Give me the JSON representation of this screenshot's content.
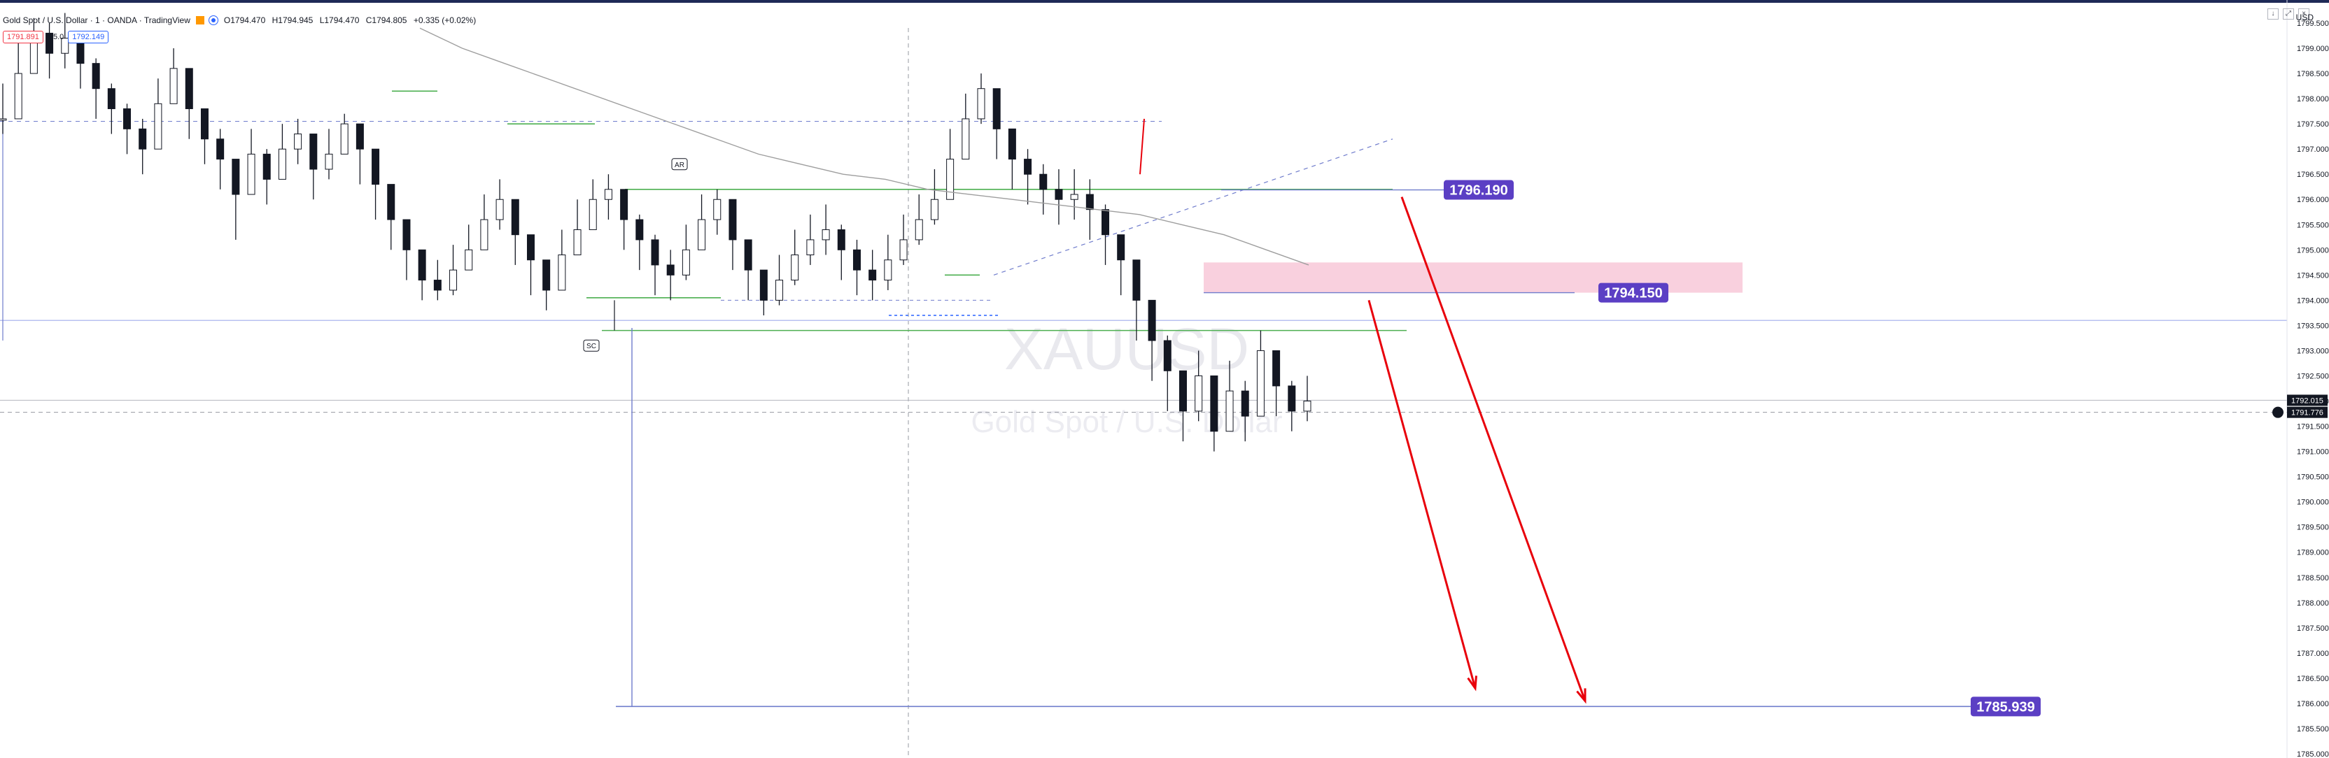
{
  "header": {
    "symbol_title": "Gold Spot / U.S. Dollar · 1 · OANDA · TradingView",
    "ohlc": {
      "open": "O1794.470",
      "high": "H1794.945",
      "low": "L1794.470",
      "close": "C1794.805",
      "change": "+0.335 (+0.02%)"
    },
    "sell_price": "1791.891",
    "spread": "25.0",
    "buy_price": "1792.149",
    "currency": "USD"
  },
  "watermark": {
    "ticker": "XAUUSD",
    "description": "Gold Spot / U.S. Dollar"
  },
  "labels": {
    "ar": "AR",
    "sc": "SC"
  },
  "colors": {
    "up": "#131722",
    "down": "#131722",
    "accent": "#5b3fc4",
    "arrow": "#e8000b",
    "zone": "#f8c8d8",
    "support": "#4caf50",
    "line": "#6f7ccc"
  },
  "chart_data": {
    "type": "line",
    "title": "Gold Spot / U.S. Dollar · 1 · OANDA",
    "xlabel": "",
    "ylabel": "",
    "ylim": [
      1785.0,
      1799.5
    ],
    "y_ticks": [
      "1799.500",
      "1799.000",
      "1798.500",
      "1798.000",
      "1797.500",
      "1797.000",
      "1796.500",
      "1796.000",
      "1795.500",
      "1795.000",
      "1794.500",
      "1794.000",
      "1793.500",
      "1793.000",
      "1792.500",
      "1792.000",
      "1791.500",
      "1791.000",
      "1790.500",
      "1790.000",
      "1789.500",
      "1789.000",
      "1788.500",
      "1788.000",
      "1787.500",
      "1787.000",
      "1786.500",
      "1786.000",
      "1785.500",
      "1785.000"
    ],
    "last_price": "1792.015",
    "cursor_price": "1791.776",
    "price_line_value": 1792.015,
    "cursor_line_value": 1791.776,
    "series": [
      {
        "values": [
          1797.6,
          1798.5,
          1799.3,
          1798.9,
          1799.2,
          1798.7,
          1798.2,
          1797.8,
          1797.4,
          1797.0,
          1797.9,
          1798.6,
          1797.8,
          1797.2,
          1796.8,
          1796.1,
          1796.9,
          1796.4,
          1797.0,
          1797.3,
          1796.6,
          1796.9,
          1797.5,
          1797.0,
          1796.3,
          1795.6,
          1795.0,
          1794.4,
          1794.2,
          1794.6,
          1795.0,
          1795.6,
          1796.0,
          1795.3,
          1794.8,
          1794.2,
          1794.9,
          1795.4,
          1796.0,
          1796.2,
          1795.6,
          1795.2,
          1794.7,
          1794.5,
          1795.0,
          1795.6,
          1796.0,
          1795.2,
          1794.6,
          1794.0,
          1794.4,
          1794.9,
          1795.2,
          1795.4,
          1795.0,
          1794.6,
          1794.4,
          1794.8,
          1795.2,
          1795.6,
          1796.0,
          1796.8,
          1797.6,
          1798.2,
          1797.4,
          1796.8,
          1796.5,
          1796.2,
          1796.0,
          1796.1,
          1795.8,
          1795.3,
          1794.8,
          1794.0,
          1793.2,
          1792.6,
          1791.8,
          1792.5,
          1791.4,
          1792.2,
          1791.7,
          1793.0,
          1792.3,
          1791.8,
          1792.0
        ],
        "low_values": [
          1797.3,
          1798.1,
          1798.8,
          1798.4,
          1798.6,
          1798.2,
          1797.6,
          1797.3,
          1796.9,
          1796.5,
          1797.3,
          1797.9,
          1797.2,
          1796.7,
          1796.2,
          1795.2,
          1796.4,
          1795.9,
          1796.5,
          1796.7,
          1796.0,
          1796.4,
          1797.0,
          1796.3,
          1795.6,
          1795.0,
          1794.4,
          1794.0,
          1794.0,
          1794.1,
          1794.6,
          1795.0,
          1795.4,
          1794.7,
          1794.1,
          1793.8,
          1794.3,
          1794.9,
          1795.4,
          1795.6,
          1795.0,
          1794.6,
          1794.1,
          1794.0,
          1794.4,
          1795.0,
          1795.3,
          1794.6,
          1794.0,
          1793.7,
          1793.9,
          1794.3,
          1794.7,
          1794.9,
          1794.4,
          1794.1,
          1794.0,
          1794.2,
          1794.7,
          1795.1,
          1795.5,
          1796.2,
          1797.0,
          1797.5,
          1796.8,
          1796.2,
          1795.9,
          1795.7,
          1795.5,
          1795.6,
          1795.2,
          1794.7,
          1794.1,
          1793.2,
          1792.4,
          1791.8,
          1791.2,
          1791.6,
          1791.0,
          1791.6,
          1791.2,
          1792.4,
          1791.7,
          1791.4,
          1791.6
        ],
        "high_values": [
          1798.3,
          1799.1,
          1799.6,
          1799.5,
          1799.7,
          1799.2,
          1798.8,
          1798.3,
          1797.9,
          1797.6,
          1798.4,
          1799.0,
          1798.3,
          1797.8,
          1797.4,
          1796.8,
          1797.4,
          1797.0,
          1797.5,
          1797.6,
          1797.2,
          1797.4,
          1797.7,
          1797.5,
          1796.9,
          1796.2,
          1795.6,
          1795.0,
          1794.8,
          1795.1,
          1795.5,
          1796.1,
          1796.4,
          1795.9,
          1795.3,
          1794.8,
          1795.4,
          1796.0,
          1796.4,
          1796.5,
          1796.2,
          1795.7,
          1795.3,
          1795.0,
          1795.5,
          1796.1,
          1796.2,
          1795.7,
          1795.2,
          1794.6,
          1794.9,
          1795.4,
          1795.7,
          1795.9,
          1795.5,
          1795.2,
          1795.0,
          1795.3,
          1795.7,
          1796.1,
          1796.6,
          1797.4,
          1798.1,
          1798.5,
          1798.0,
          1797.3,
          1797.0,
          1796.7,
          1796.6,
          1796.6,
          1796.4,
          1795.9,
          1795.3,
          1794.6,
          1793.8,
          1793.3,
          1792.6,
          1793.0,
          1792.0,
          1792.8,
          1792.4,
          1793.4,
          1792.9,
          1792.4,
          1792.5
        ]
      }
    ],
    "moving_average": [
      1799.4,
      1799.0,
      1798.7,
      1798.4,
      1798.1,
      1797.8,
      1797.5,
      1797.2,
      1796.9,
      1796.7,
      1796.5,
      1796.4,
      1796.2,
      1796.1,
      1796.0,
      1795.9,
      1795.8,
      1795.7,
      1795.5,
      1795.3,
      1795.0,
      1794.7
    ],
    "levels": {
      "upper_target": "1796.190",
      "lower_target": "1794.150",
      "final_target": "1785.939"
    },
    "zone": [
      1794.15,
      1794.75
    ],
    "grid": false,
    "legend": "top-left"
  }
}
